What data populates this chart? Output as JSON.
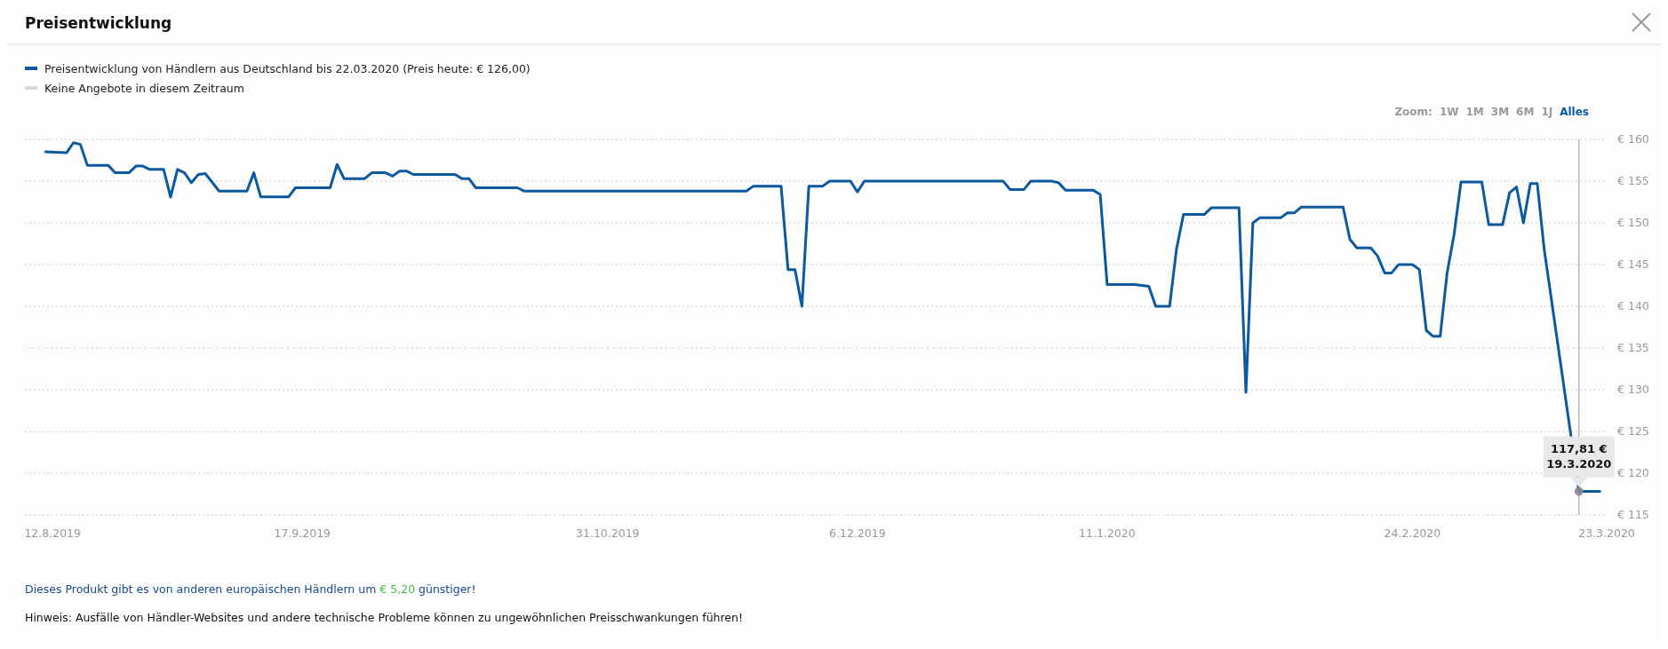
{
  "chart_data": {
    "type": "line",
    "title": "Preisentwicklung",
    "x": [
      "2019-08-11",
      "2019-08-14",
      "2019-08-15",
      "2019-08-16",
      "2019-08-17",
      "2019-08-20",
      "2019-08-21",
      "2019-08-23",
      "2019-08-24",
      "2019-08-25",
      "2019-08-26",
      "2019-08-28",
      "2019-08-29",
      "2019-08-30",
      "2019-08-31",
      "2019-09-01",
      "2019-09-02",
      "2019-09-03",
      "2019-09-05",
      "2019-09-09",
      "2019-09-10",
      "2019-09-11",
      "2019-09-15",
      "2019-09-16",
      "2019-09-21",
      "2019-09-22",
      "2019-09-23",
      "2019-09-26",
      "2019-09-27",
      "2019-09-29",
      "2019-09-30",
      "2019-10-01",
      "2019-10-02",
      "2019-10-03",
      "2019-10-09",
      "2019-10-10",
      "2019-10-11",
      "2019-10-12",
      "2019-10-18",
      "2019-10-19",
      "2019-11-20",
      "2019-11-21",
      "2019-11-25",
      "2019-11-26",
      "2019-11-27",
      "2019-11-28",
      "2019-11-29",
      "2019-12-01",
      "2019-12-02",
      "2019-12-05",
      "2019-12-06",
      "2019-12-07",
      "2019-12-27",
      "2019-12-28",
      "2019-12-30",
      "2019-12-31",
      "2020-01-03",
      "2020-01-04",
      "2020-01-05",
      "2020-01-09",
      "2020-01-10",
      "2020-01-11",
      "2020-01-15",
      "2020-01-17",
      "2020-01-18",
      "2020-01-20",
      "2020-01-21",
      "2020-01-22",
      "2020-01-25",
      "2020-01-26",
      "2020-01-30",
      "2020-01-31",
      "2020-02-01",
      "2020-02-02",
      "2020-02-05",
      "2020-02-06",
      "2020-02-07",
      "2020-02-08",
      "2020-02-14",
      "2020-02-15",
      "2020-02-16",
      "2020-02-18",
      "2020-02-19",
      "2020-02-20",
      "2020-02-21",
      "2020-02-22",
      "2020-02-24",
      "2020-02-25",
      "2020-02-26",
      "2020-02-27",
      "2020-02-28",
      "2020-02-29",
      "2020-03-01",
      "2020-03-02",
      "2020-03-05",
      "2020-03-06",
      "2020-03-08",
      "2020-03-09",
      "2020-03-10",
      "2020-03-11",
      "2020-03-12",
      "2020-03-13",
      "2020-03-14",
      "2020-03-19",
      "2020-03-22"
    ],
    "series": [
      {
        "name": "Preisentwicklung von Händlern aus Deutschland bis 22.03.2020 (Preis heute: € 126,00)",
        "color": "#0b5aa0",
        "values": [
          158.5,
          158.4,
          159.6,
          159.4,
          156.9,
          156.9,
          156.0,
          156.0,
          156.8,
          156.8,
          156.4,
          156.4,
          153.1,
          156.4,
          156.0,
          154.8,
          155.8,
          155.9,
          153.8,
          153.8,
          156.0,
          153.1,
          153.1,
          154.2,
          154.2,
          157.0,
          155.3,
          155.3,
          156.0,
          156.0,
          155.6,
          156.2,
          156.2,
          155.8,
          155.8,
          155.3,
          155.3,
          154.2,
          154.2,
          153.8,
          153.8,
          154.4,
          154.4,
          144.4,
          144.4,
          140.0,
          154.4,
          154.4,
          155.0,
          155.0,
          153.7,
          155.0,
          155.0,
          154.0,
          154.0,
          155.0,
          155.0,
          154.8,
          153.9,
          153.9,
          153.4,
          142.6,
          142.6,
          142.4,
          140.0,
          140.0,
          146.9,
          151.0,
          151.0,
          151.8,
          151.8,
          129.7,
          150.0,
          150.6,
          150.6,
          151.2,
          151.2,
          151.9,
          151.9,
          148.0,
          147.0,
          147.0,
          146.0,
          144.0,
          144.0,
          145.0,
          145.0,
          144.4,
          137.1,
          136.4,
          136.4,
          144.0,
          148.6,
          154.9,
          154.9,
          149.8,
          149.8,
          153.6,
          154.3,
          150.0,
          154.7,
          154.7,
          146.8,
          117.81,
          117.81
        ]
      },
      {
        "name": "Keine Angebote in diesem Zeitraum",
        "color": "#d9d9d9",
        "values": [
          null,
          null,
          null,
          null,
          null,
          null,
          null,
          null,
          null,
          null,
          null,
          null,
          null,
          null,
          null,
          null,
          null,
          null,
          null,
          null,
          null,
          null,
          null,
          null,
          null,
          null,
          null,
          null,
          null,
          null,
          null,
          null,
          null,
          null,
          null,
          null,
          null,
          null,
          null,
          null,
          null,
          null,
          null,
          null,
          null,
          null,
          null,
          null,
          null,
          null,
          null,
          null,
          null,
          null,
          null,
          null,
          null,
          null,
          null,
          null,
          null,
          null,
          null,
          null,
          null,
          null,
          null,
          null,
          null,
          null,
          null,
          null,
          null,
          null,
          null,
          null,
          null,
          null,
          null,
          null,
          null,
          null,
          null,
          null,
          null,
          null,
          null,
          null,
          null,
          null,
          null,
          null,
          null,
          null,
          null,
          null,
          null,
          null,
          null,
          null,
          null,
          null,
          null,
          null,
          null
        ]
      }
    ],
    "xlim": [
      "2019-08-08",
      "2020-03-23"
    ],
    "xticks": [
      {
        "value": "2019-08-12",
        "label": "12.8.2019"
      },
      {
        "value": "2019-09-17",
        "label": "17.9.2019"
      },
      {
        "value": "2019-10-31",
        "label": "31.10.2019"
      },
      {
        "value": "2019-12-06",
        "label": "6.12.2019"
      },
      {
        "value": "2020-01-11",
        "label": "11.1.2020"
      },
      {
        "value": "2020-02-24",
        "label": "24.2.2020"
      },
      {
        "value": "2020-03-23",
        "label": "23.3.2020"
      }
    ],
    "ylim": [
      115,
      160
    ],
    "yticks": [
      {
        "value": 115,
        "label": "€ 115"
      },
      {
        "value": 120,
        "label": "€ 120"
      },
      {
        "value": 125,
        "label": "€ 125"
      },
      {
        "value": 130,
        "label": "€ 130"
      },
      {
        "value": 135,
        "label": "€ 135"
      },
      {
        "value": 140,
        "label": "€ 140"
      },
      {
        "value": 145,
        "label": "€ 145"
      },
      {
        "value": 150,
        "label": "€ 150"
      },
      {
        "value": 155,
        "label": "€ 155"
      },
      {
        "value": 160,
        "label": "€ 160"
      }
    ],
    "grid": "y",
    "legend": "top left",
    "marker": "none",
    "line_style": "solid",
    "ref_lines": [
      {
        "axis": "x",
        "value": "2020-03-19",
        "color": "#999999"
      }
    ],
    "annotations": [
      "Zoom: 1W 1M 3M 6M 1J Alles",
      "Dieses Produkt gibt es von anderen europäischen Händlern um € 5,20 günstiger!",
      "Hinweis: Ausfälle von Händler-Websites und andere technische Probleme können zu ungewöhnlichen Preisschwankungen führen!",
      {
        "text": "117,81 €\n19.3.2020",
        "x": "2020-03-19",
        "y": 117.81
      }
    ]
  }
}
